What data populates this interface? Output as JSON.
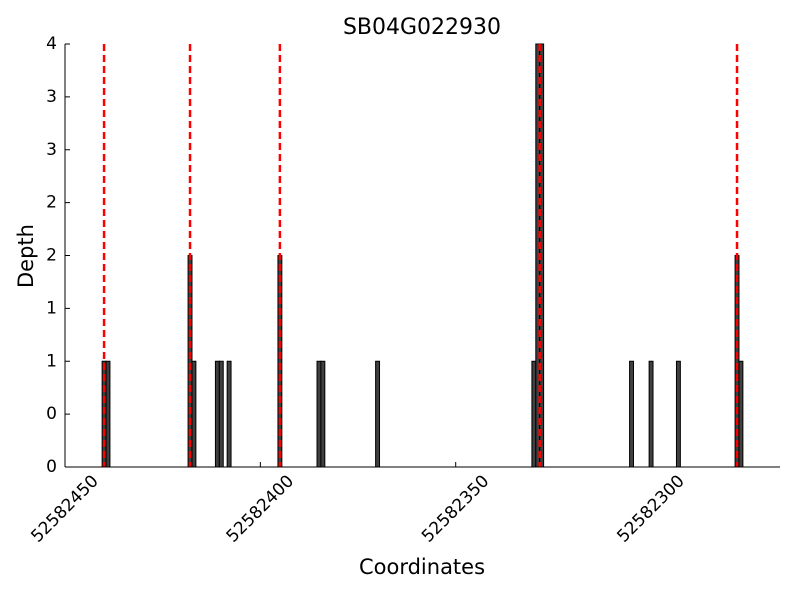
{
  "chart_data": {
    "type": "bar",
    "title": "SB04G022930",
    "x_label": "Coordinates",
    "y_label": "Depth",
    "x": [
      52582440,
      52582439,
      52582418,
      52582417,
      52582411,
      52582410,
      52582408,
      52582395,
      52582385,
      52582384,
      52582370,
      52582330,
      52582329,
      52582328,
      52582305,
      52582300,
      52582293,
      52582278,
      52582277
    ],
    "values": [
      1,
      1,
      2,
      1,
      1,
      1,
      1,
      2,
      1,
      1,
      1,
      1,
      4,
      4,
      1,
      1,
      1,
      2,
      1
    ],
    "color": "#404040",
    "vlines": [
      52582440,
      52582418,
      52582395,
      52582328.5,
      52582278
    ],
    "vline_color": "#ff0000",
    "xlim": [
      52582450,
      52582267
    ],
    "xticks": [
      52582450,
      52582400,
      52582350,
      52582300
    ],
    "ylim": [
      0,
      4
    ],
    "yticks": [
      0,
      {
        "value": 0.5,
        "label": "0"
      },
      1,
      {
        "value": 1.5,
        "label": "1"
      },
      2,
      {
        "value": 2.5,
        "label": "2"
      },
      3,
      {
        "value": 3.5,
        "label": "3"
      },
      4
    ]
  }
}
